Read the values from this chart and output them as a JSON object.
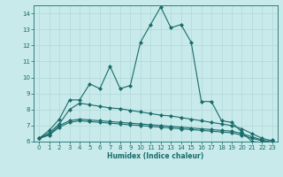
{
  "xlabel": "Humidex (Indice chaleur)",
  "xlim": [
    -0.5,
    23.5
  ],
  "ylim": [
    6,
    14.5
  ],
  "yticks": [
    6,
    7,
    8,
    9,
    10,
    11,
    12,
    13,
    14
  ],
  "xticks": [
    0,
    1,
    2,
    3,
    4,
    5,
    6,
    7,
    8,
    9,
    10,
    11,
    12,
    13,
    14,
    15,
    16,
    17,
    18,
    19,
    20,
    21,
    22,
    23
  ],
  "bg_color": "#c8eaea",
  "line_color": "#1a6b6b",
  "grid_color": "#b0d8d8",
  "series": [
    {
      "x": [
        0,
        1,
        2,
        3,
        4,
        5,
        6,
        7,
        8,
        9,
        10,
        11,
        12,
        13,
        14,
        15,
        16,
        17,
        18,
        19,
        20,
        21,
        22,
        23
      ],
      "y": [
        6.2,
        6.7,
        7.4,
        8.6,
        8.6,
        9.6,
        9.3,
        10.7,
        9.3,
        9.5,
        12.2,
        13.3,
        14.4,
        13.1,
        13.3,
        12.2,
        8.5,
        8.5,
        7.3,
        7.2,
        6.6,
        6.0,
        5.95,
        6.1
      ]
    },
    {
      "x": [
        0,
        1,
        2,
        3,
        4,
        5,
        6,
        7,
        8,
        9,
        10,
        11,
        12,
        13,
        14,
        15,
        16,
        17,
        18,
        19,
        20,
        21,
        22,
        23
      ],
      "y": [
        6.2,
        6.55,
        7.1,
        8.0,
        8.4,
        8.3,
        8.2,
        8.1,
        8.05,
        7.95,
        7.85,
        7.75,
        7.65,
        7.6,
        7.5,
        7.4,
        7.3,
        7.2,
        7.1,
        7.0,
        6.8,
        6.5,
        6.2,
        6.05
      ]
    },
    {
      "x": [
        0,
        1,
        2,
        3,
        4,
        5,
        6,
        7,
        8,
        9,
        10,
        11,
        12,
        13,
        14,
        15,
        16,
        17,
        18,
        19,
        20,
        21,
        22,
        23
      ],
      "y": [
        6.2,
        6.45,
        7.0,
        7.3,
        7.4,
        7.35,
        7.3,
        7.25,
        7.2,
        7.15,
        7.1,
        7.05,
        7.0,
        6.95,
        6.9,
        6.85,
        6.8,
        6.75,
        6.7,
        6.65,
        6.5,
        6.3,
        6.1,
        5.95
      ]
    },
    {
      "x": [
        0,
        1,
        2,
        3,
        4,
        5,
        6,
        7,
        8,
        9,
        10,
        11,
        12,
        13,
        14,
        15,
        16,
        17,
        18,
        19,
        20,
        21,
        22,
        23
      ],
      "y": [
        6.2,
        6.4,
        6.9,
        7.2,
        7.3,
        7.25,
        7.2,
        7.15,
        7.1,
        7.05,
        7.0,
        6.95,
        6.9,
        6.85,
        6.8,
        6.75,
        6.7,
        6.65,
        6.6,
        6.55,
        6.4,
        6.2,
        6.05,
        5.9
      ]
    }
  ],
  "figwidth": 3.2,
  "figheight": 2.0,
  "dpi": 100
}
